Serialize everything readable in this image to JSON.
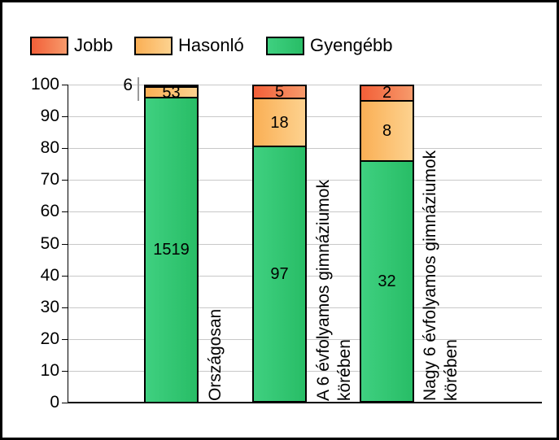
{
  "legend": {
    "items": [
      {
        "label": "Jobb",
        "color": "#f4724a"
      },
      {
        "label": "Hasonló",
        "color": "#fbbf6e"
      },
      {
        "label": "Gyengébb",
        "color": "#2ec673"
      }
    ]
  },
  "y_axis": {
    "min": 0,
    "max": 100,
    "ticks": [
      0,
      10,
      20,
      30,
      40,
      50,
      60,
      70,
      80,
      90,
      100
    ]
  },
  "chart_data": {
    "type": "bar",
    "stacked": true,
    "normalized_to_100_percent": true,
    "grid": true,
    "legend_position": "top-left",
    "xlabel": "",
    "ylabel": "",
    "ylim": [
      0,
      100
    ],
    "categories": [
      "Országosan",
      "A 6 évfolyamos gimnáziumok körében",
      "Nagy 6 évfolyamos gimnáziumok körében"
    ],
    "category_display_lines": [
      "Országosan",
      "A 6 évfolyamos gimnáziumok\nkörében",
      "Nagy 6 évfolyamos gimnáziumok\nkörében"
    ],
    "series": [
      {
        "name": "Jobb",
        "color": "#f4724a",
        "color_left": "#f25f38",
        "color_right": "#f79a6b",
        "values": [
          6,
          5,
          2
        ]
      },
      {
        "name": "Hasonló",
        "color": "#fbbf6e",
        "color_left": "#faaf55",
        "color_right": "#fdd28f",
        "values": [
          53,
          18,
          8
        ]
      },
      {
        "name": "Gyengébb",
        "color": "#2ec673",
        "color_left": "#3fd080",
        "color_right": "#28bd66",
        "values": [
          1519,
          97,
          32
        ]
      }
    ],
    "stack_height_percent": [
      {
        "category": "Országosan",
        "Jobb": 0.4,
        "Hasonló": 3.4,
        "Gyengébb": 96.2
      },
      {
        "category": "A 6 évfolyamos gimnáziumok körében",
        "Jobb": 4.2,
        "Hasonló": 15.0,
        "Gyengébb": 80.8
      },
      {
        "category": "Nagy 6 évfolyamos gimnáziumok körében",
        "Jobb": 4.8,
        "Hasonló": 19.0,
        "Gyengébb": 76.2
      }
    ],
    "outside_annotation": {
      "text": "6",
      "refers_to": "Jobb value of first bar (Országosan)"
    }
  },
  "colors": {
    "background": "#ffffff",
    "frame_border": "#000000",
    "axis": "#000000",
    "grid": "#c8c8c8",
    "bar_border": "#000000",
    "leader_line": "#9a9a9a",
    "text": "#000000"
  }
}
